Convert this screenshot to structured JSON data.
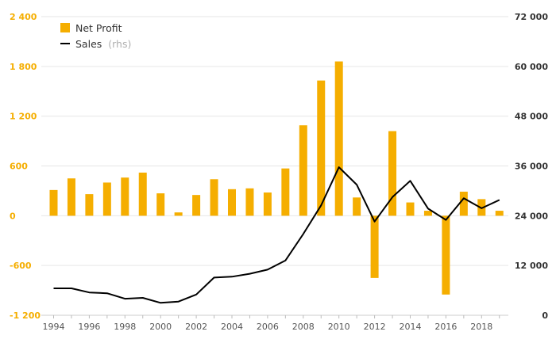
{
  "chart_data": {
    "type": "bar+line",
    "x": [
      1994,
      1995,
      1996,
      1997,
      1998,
      1999,
      2000,
      2001,
      2002,
      2003,
      2004,
      2005,
      2006,
      2007,
      2008,
      2009,
      2010,
      2011,
      2012,
      2013,
      2014,
      2015,
      2016,
      2017,
      2018,
      2019
    ],
    "x_tick_labels": [
      "1994",
      "1996",
      "1998",
      "2000",
      "2002",
      "2004",
      "2006",
      "2008",
      "2010",
      "2012",
      "2014",
      "2016",
      "2018"
    ],
    "series": [
      {
        "name": "Net Profit",
        "kind": "bar",
        "axis": "left",
        "color": "#f5ae00",
        "values": [
          310,
          450,
          260,
          400,
          460,
          520,
          270,
          40,
          250,
          440,
          320,
          330,
          280,
          570,
          1090,
          1630,
          1860,
          220,
          -750,
          1020,
          160,
          60,
          -950,
          290,
          200,
          60
        ]
      },
      {
        "name": "Sales",
        "name_suffix": "(rhs)",
        "kind": "line",
        "axis": "right",
        "color": "#000000",
        "values": [
          6500,
          6500,
          5500,
          5300,
          4000,
          4200,
          3000,
          3300,
          5000,
          9100,
          9300,
          10000,
          11000,
          13200,
          19600,
          26500,
          35700,
          31500,
          22600,
          28500,
          32400,
          25700,
          23000,
          28200,
          25800,
          27800
        ]
      }
    ],
    "y_left": {
      "min": -1200,
      "max": 2400,
      "ticks": [
        -1200,
        -600,
        0,
        600,
        1200,
        1800,
        2400
      ],
      "tick_labels": [
        "-1 200",
        "-600",
        "0",
        "600",
        "1 200",
        "1 800",
        "2 400"
      ],
      "color": "#f5ae00"
    },
    "y_right": {
      "min": 0,
      "max": 72000,
      "ticks": [
        0,
        12000,
        24000,
        36000,
        48000,
        60000,
        72000
      ],
      "tick_labels": [
        "0",
        "12 000",
        "24 000",
        "36 000",
        "48 000",
        "60 000",
        "72 000"
      ]
    },
    "grid": "horizontal",
    "legend_position": "top-left",
    "title": "",
    "xlabel": "",
    "ylabel": ""
  }
}
